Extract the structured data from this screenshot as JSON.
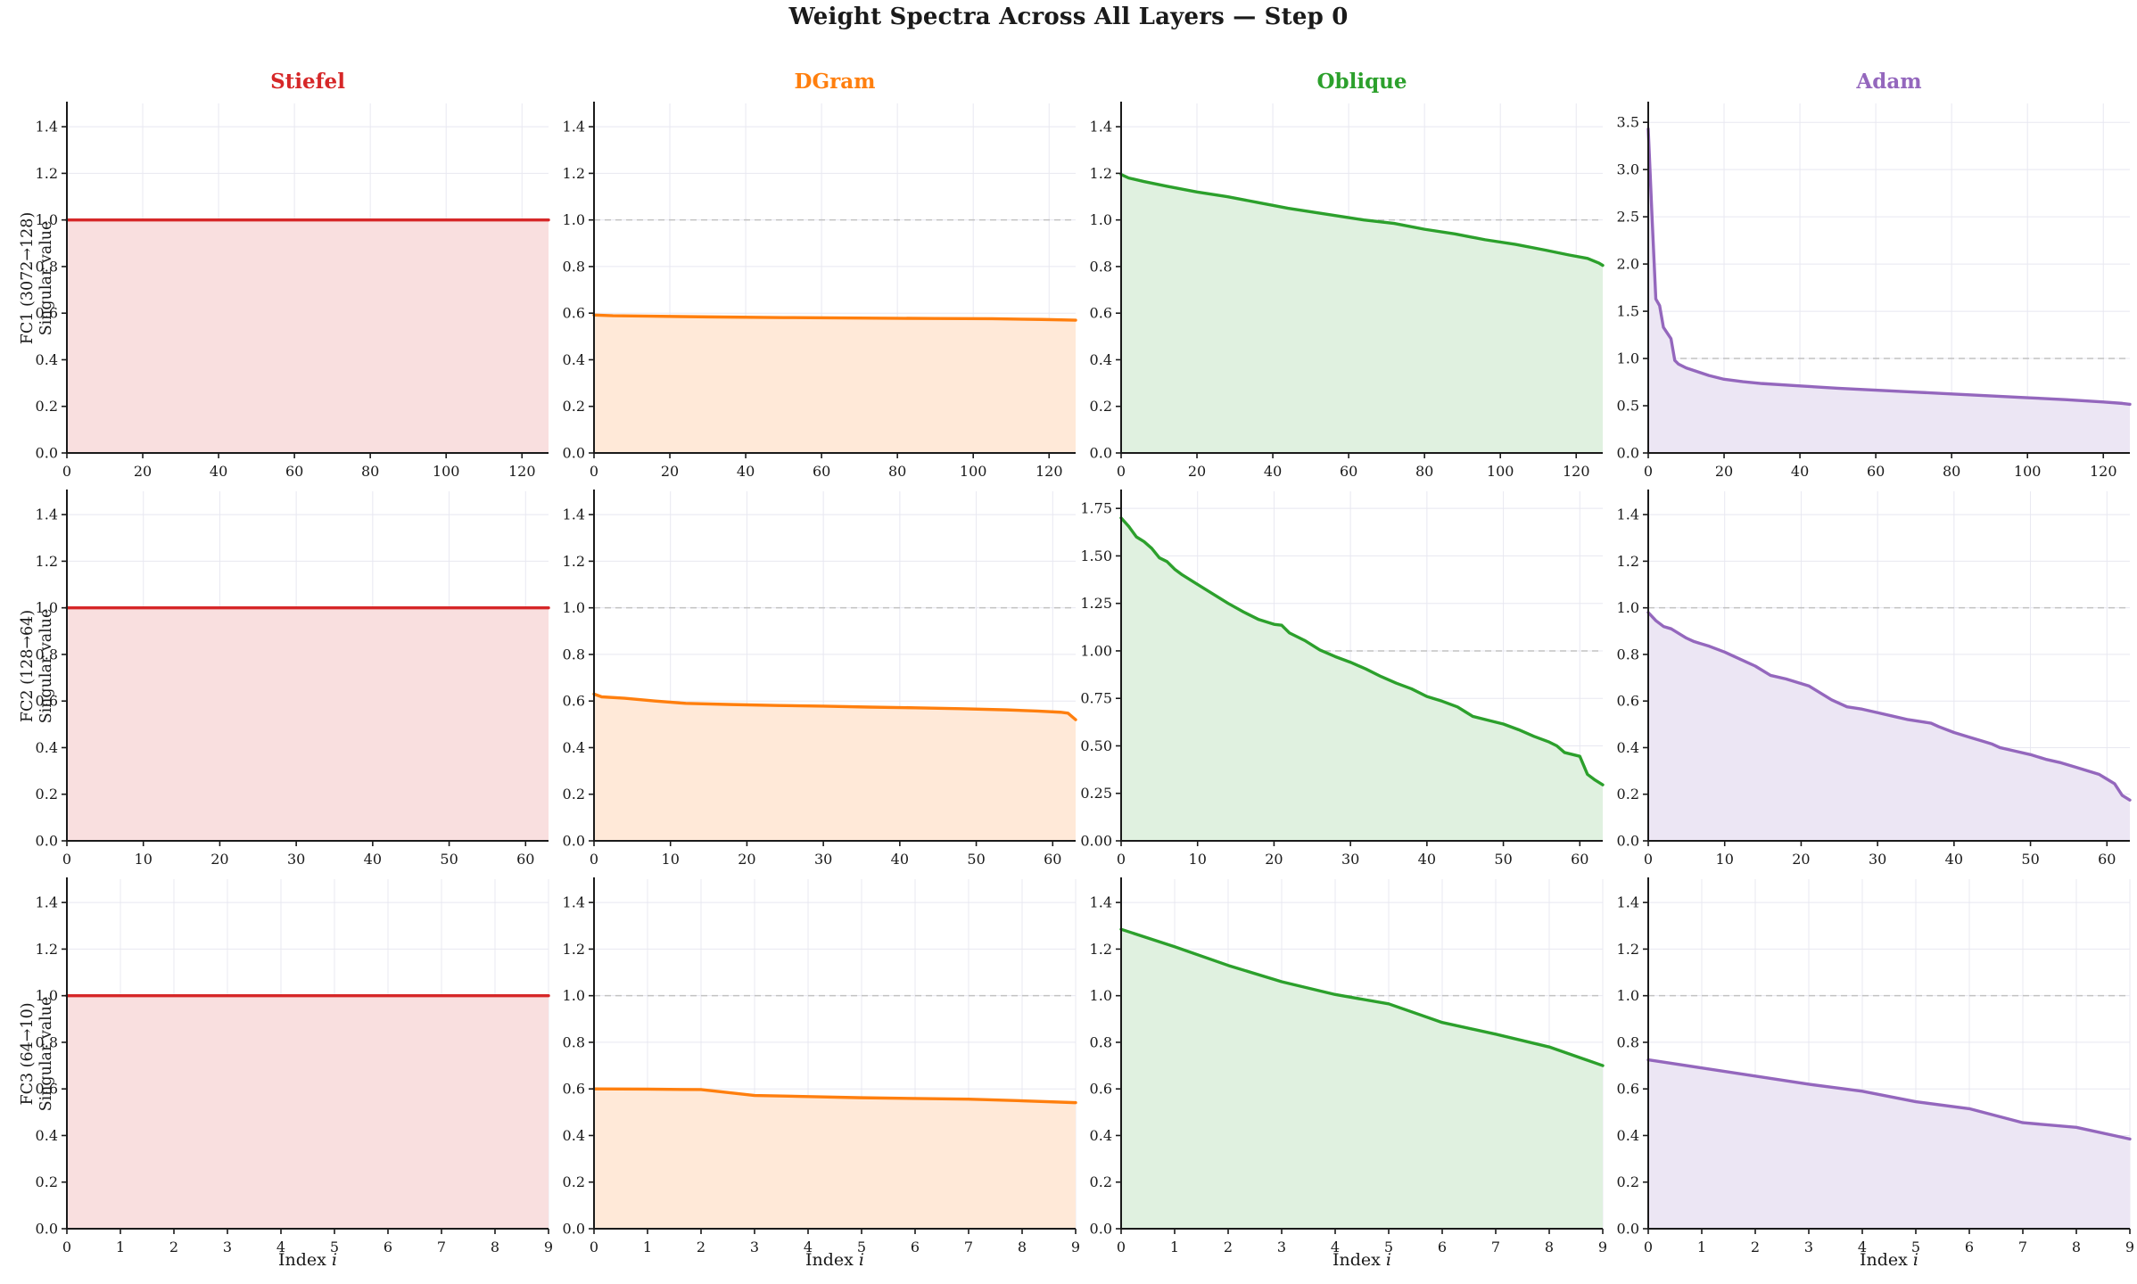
{
  "title": "Weight Spectra Across All Layers — Step 0",
  "xlabel": {
    "word": "Index",
    "var": "i"
  },
  "columns": [
    {
      "name": "Stiefel",
      "color": "#d62728",
      "fill": "#f9dfdf"
    },
    {
      "name": "DGram",
      "color": "#ff7f0e",
      "fill": "#ffe9d8"
    },
    {
      "name": "Oblique",
      "color": "#2ca02c",
      "fill": "#e0f1e0"
    },
    {
      "name": "Adam",
      "color": "#9467bd",
      "fill": "#ece6f4"
    }
  ],
  "rows": [
    {
      "label": "FC1 (3072→128)",
      "sublabel": "Singular value"
    },
    {
      "label": "FC2 (128→64)",
      "sublabel": "Singular value"
    },
    {
      "label": "FC3 (64→10)",
      "sublabel": "Singular value"
    }
  ],
  "style": {
    "grid": "#e8e8f1",
    "ref": "#c2c2c2",
    "axis": "#1a1a1a",
    "background": "#ffffff"
  },
  "chart_data": {
    "type": "line",
    "title": "Weight Spectra Across All Layers — Step 0",
    "x_axis_label": "Index i",
    "y_axis_label": "Singular value",
    "reference_line_y": 1.0,
    "grid": true,
    "legend": "none",
    "columns": [
      "Stiefel",
      "DGram",
      "Oblique",
      "Adam"
    ],
    "rows": [
      "FC1 (3072→128)",
      "FC2 (128→64)",
      "FC3 (64→10)"
    ],
    "charts": [
      {
        "layer": "FC1 (3072→128)",
        "optimizer": "Stiefel",
        "xlim": [
          0,
          127
        ],
        "ylim": [
          0,
          1.5
        ],
        "xticks": [
          0,
          20,
          40,
          60,
          80,
          100,
          120
        ],
        "yticks": [
          0,
          0.2,
          0.4,
          0.6,
          0.8,
          1.0,
          1.2,
          1.4
        ],
        "ytick_decimals": 1,
        "ref_line": 1.0,
        "x": [
          0,
          127
        ],
        "y": [
          1.0,
          1.0
        ]
      },
      {
        "layer": "FC1 (3072→128)",
        "optimizer": "DGram",
        "xlim": [
          0,
          127
        ],
        "ylim": [
          0,
          1.5
        ],
        "xticks": [
          0,
          20,
          40,
          60,
          80,
          100,
          120
        ],
        "yticks": [
          0,
          0.2,
          0.4,
          0.6,
          0.8,
          1.0,
          1.2,
          1.4
        ],
        "ytick_decimals": 1,
        "ref_line": 1.0,
        "x": [
          0,
          5,
          15,
          30,
          50,
          70,
          90,
          105,
          118,
          127
        ],
        "y": [
          0.592,
          0.589,
          0.587,
          0.584,
          0.581,
          0.579,
          0.577,
          0.576,
          0.573,
          0.57
        ]
      },
      {
        "layer": "FC1 (3072→128)",
        "optimizer": "Oblique",
        "xlim": [
          0,
          127
        ],
        "ylim": [
          0,
          1.5
        ],
        "xticks": [
          0,
          20,
          40,
          60,
          80,
          100,
          120
        ],
        "yticks": [
          0,
          0.2,
          0.4,
          0.6,
          0.8,
          1.0,
          1.2,
          1.4
        ],
        "ytick_decimals": 1,
        "ref_line": 1.0,
        "x": [
          0,
          2,
          6,
          12,
          20,
          28,
          36,
          44,
          52,
          60,
          64,
          72,
          80,
          88,
          96,
          104,
          112,
          118,
          123,
          126,
          127
        ],
        "y": [
          1.195,
          1.18,
          1.165,
          1.145,
          1.12,
          1.1,
          1.075,
          1.05,
          1.03,
          1.01,
          1.0,
          0.985,
          0.96,
          0.94,
          0.915,
          0.895,
          0.87,
          0.85,
          0.835,
          0.815,
          0.805
        ]
      },
      {
        "layer": "FC1 (3072→128)",
        "optimizer": "Adam",
        "xlim": [
          0,
          127
        ],
        "ylim": [
          0,
          3.7
        ],
        "xticks": [
          0,
          20,
          40,
          60,
          80,
          100,
          120
        ],
        "yticks": [
          0,
          0.5,
          1.0,
          1.5,
          2.0,
          2.5,
          3.0,
          3.5
        ],
        "ytick_decimals": 1,
        "ref_line": 1.0,
        "x": [
          0,
          1,
          2,
          3,
          4,
          5,
          6,
          7,
          8,
          10,
          13,
          16,
          20,
          25,
          30,
          40,
          50,
          60,
          70,
          80,
          90,
          100,
          110,
          120,
          125,
          127
        ],
        "y": [
          3.43,
          2.5,
          1.63,
          1.56,
          1.33,
          1.27,
          1.21,
          0.98,
          0.94,
          0.9,
          0.86,
          0.82,
          0.78,
          0.755,
          0.735,
          0.71,
          0.685,
          0.665,
          0.645,
          0.625,
          0.605,
          0.585,
          0.565,
          0.54,
          0.525,
          0.515
        ]
      },
      {
        "layer": "FC2 (128→64)",
        "optimizer": "Stiefel",
        "xlim": [
          0,
          63
        ],
        "ylim": [
          0,
          1.5
        ],
        "xticks": [
          0,
          10,
          20,
          30,
          40,
          50,
          60
        ],
        "yticks": [
          0,
          0.2,
          0.4,
          0.6,
          0.8,
          1.0,
          1.2,
          1.4
        ],
        "ytick_decimals": 1,
        "ref_line": 1.0,
        "x": [
          0,
          63
        ],
        "y": [
          1.0,
          1.0
        ]
      },
      {
        "layer": "FC2 (128→64)",
        "optimizer": "DGram",
        "xlim": [
          0,
          63
        ],
        "ylim": [
          0,
          1.5
        ],
        "xticks": [
          0,
          10,
          20,
          30,
          40,
          50,
          60
        ],
        "yticks": [
          0,
          0.2,
          0.4,
          0.6,
          0.8,
          1.0,
          1.2,
          1.4
        ],
        "ytick_decimals": 1,
        "ref_line": 1.0,
        "x": [
          0,
          1,
          4,
          8,
          12,
          18,
          24,
          30,
          36,
          42,
          48,
          54,
          58,
          61,
          62,
          63
        ],
        "y": [
          0.63,
          0.618,
          0.612,
          0.6,
          0.59,
          0.585,
          0.581,
          0.578,
          0.574,
          0.571,
          0.567,
          0.562,
          0.557,
          0.552,
          0.548,
          0.52
        ]
      },
      {
        "layer": "FC2 (128→64)",
        "optimizer": "Oblique",
        "xlim": [
          0,
          63
        ],
        "ylim": [
          0,
          1.84
        ],
        "xticks": [
          0,
          10,
          20,
          30,
          40,
          50,
          60
        ],
        "yticks": [
          0,
          0.25,
          0.5,
          0.75,
          1.0,
          1.25,
          1.5,
          1.75
        ],
        "ytick_decimals": 2,
        "ref_line": 1.0,
        "x": [
          0,
          1,
          2,
          3,
          4,
          5,
          6,
          7,
          8,
          10,
          12,
          14,
          16,
          18,
          20,
          21,
          22,
          24,
          26,
          28,
          30,
          32,
          34,
          36,
          38,
          40,
          42,
          44,
          45,
          46,
          48,
          50,
          52,
          54,
          56,
          57,
          58,
          59,
          60,
          61,
          62,
          63
        ],
        "y": [
          1.7,
          1.655,
          1.6,
          1.575,
          1.54,
          1.49,
          1.47,
          1.43,
          1.4,
          1.35,
          1.3,
          1.25,
          1.205,
          1.165,
          1.14,
          1.135,
          1.095,
          1.055,
          1.005,
          0.97,
          0.94,
          0.905,
          0.865,
          0.83,
          0.8,
          0.76,
          0.735,
          0.705,
          0.68,
          0.655,
          0.635,
          0.615,
          0.585,
          0.55,
          0.52,
          0.5,
          0.465,
          0.455,
          0.445,
          0.35,
          0.32,
          0.295
        ]
      },
      {
        "layer": "FC2 (128→64)",
        "optimizer": "Adam",
        "xlim": [
          0,
          63
        ],
        "ylim": [
          0,
          1.5
        ],
        "xticks": [
          0,
          10,
          20,
          30,
          40,
          50,
          60
        ],
        "yticks": [
          0,
          0.2,
          0.4,
          0.6,
          0.8,
          1.0,
          1.2,
          1.4
        ],
        "ytick_decimals": 1,
        "ref_line": 1.0,
        "x": [
          0,
          1,
          2,
          3,
          4,
          5,
          6,
          8,
          10,
          12,
          14,
          16,
          18,
          20,
          21,
          22,
          24,
          26,
          28,
          30,
          32,
          34,
          36,
          37,
          38,
          40,
          42,
          44,
          45,
          46,
          48,
          50,
          52,
          54,
          56,
          58,
          59,
          60,
          61,
          62,
          63
        ],
        "y": [
          0.98,
          0.945,
          0.92,
          0.91,
          0.89,
          0.87,
          0.855,
          0.835,
          0.81,
          0.78,
          0.75,
          0.71,
          0.695,
          0.675,
          0.665,
          0.645,
          0.605,
          0.575,
          0.565,
          0.55,
          0.535,
          0.52,
          0.51,
          0.505,
          0.49,
          0.465,
          0.445,
          0.425,
          0.415,
          0.4,
          0.385,
          0.37,
          0.35,
          0.335,
          0.315,
          0.295,
          0.285,
          0.265,
          0.245,
          0.195,
          0.175
        ]
      },
      {
        "layer": "FC3 (64→10)",
        "optimizer": "Stiefel",
        "xlim": [
          0,
          9
        ],
        "ylim": [
          0,
          1.5
        ],
        "xticks": [
          0,
          1,
          2,
          3,
          4,
          5,
          6,
          7,
          8,
          9
        ],
        "yticks": [
          0,
          0.2,
          0.4,
          0.6,
          0.8,
          1.0,
          1.2,
          1.4
        ],
        "ytick_decimals": 1,
        "ref_line": 1.0,
        "x": [
          0,
          1,
          2,
          3,
          4,
          5,
          6,
          7,
          8,
          9
        ],
        "y": [
          1.0,
          1.0,
          1.0,
          1.0,
          1.0,
          1.0,
          1.0,
          1.0,
          1.0,
          1.0
        ]
      },
      {
        "layer": "FC3 (64→10)",
        "optimizer": "DGram",
        "xlim": [
          0,
          9
        ],
        "ylim": [
          0,
          1.5
        ],
        "xticks": [
          0,
          1,
          2,
          3,
          4,
          5,
          6,
          7,
          8,
          9
        ],
        "yticks": [
          0,
          0.2,
          0.4,
          0.6,
          0.8,
          1.0,
          1.2,
          1.4
        ],
        "ytick_decimals": 1,
        "ref_line": 1.0,
        "x": [
          0,
          1,
          2,
          3,
          4,
          5,
          6,
          7,
          8,
          9
        ],
        "y": [
          0.6,
          0.599,
          0.597,
          0.572,
          0.567,
          0.562,
          0.559,
          0.556,
          0.549,
          0.541
        ]
      },
      {
        "layer": "FC3 (64→10)",
        "optimizer": "Oblique",
        "xlim": [
          0,
          9
        ],
        "ylim": [
          0,
          1.5
        ],
        "xticks": [
          0,
          1,
          2,
          3,
          4,
          5,
          6,
          7,
          8,
          9
        ],
        "yticks": [
          0,
          0.2,
          0.4,
          0.6,
          0.8,
          1.0,
          1.2,
          1.4
        ],
        "ytick_decimals": 1,
        "ref_line": 1.0,
        "x": [
          0,
          1,
          2,
          3,
          4,
          5,
          6,
          7,
          8,
          9
        ],
        "y": [
          1.285,
          1.21,
          1.13,
          1.06,
          1.005,
          0.965,
          0.885,
          0.835,
          0.78,
          0.7
        ]
      },
      {
        "layer": "FC3 (64→10)",
        "optimizer": "Adam",
        "xlim": [
          0,
          9
        ],
        "ylim": [
          0,
          1.5
        ],
        "xticks": [
          0,
          1,
          2,
          3,
          4,
          5,
          6,
          7,
          8,
          9
        ],
        "yticks": [
          0,
          0.2,
          0.4,
          0.6,
          0.8,
          1.0,
          1.2,
          1.4
        ],
        "ytick_decimals": 1,
        "ref_line": 1.0,
        "x": [
          0,
          1,
          2,
          3,
          4,
          5,
          6,
          7,
          8,
          9
        ],
        "y": [
          0.725,
          0.69,
          0.655,
          0.62,
          0.59,
          0.545,
          0.515,
          0.455,
          0.435,
          0.385
        ]
      }
    ]
  }
}
